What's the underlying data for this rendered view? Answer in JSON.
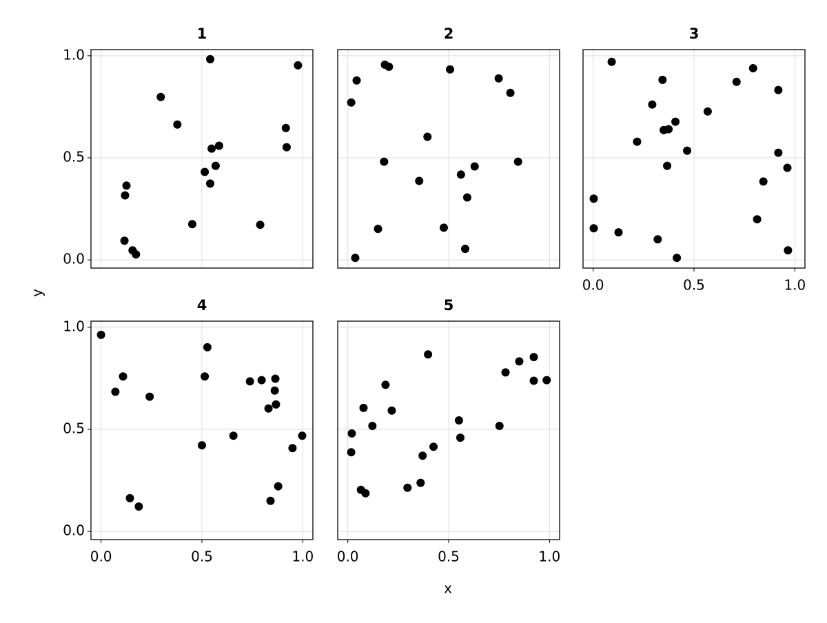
{
  "chart_data": [
    {
      "type": "scatter",
      "title": "1",
      "color": "#000000",
      "grid": true,
      "xtick_labels": false,
      "ytick_labels": true,
      "xlim": [
        -0.05,
        1.05
      ],
      "ylim": [
        -0.04,
        1.03
      ],
      "xticks": [
        {
          "value": 0,
          "label": "0.0"
        },
        0.5,
        {
          "value": 1,
          "label": "1.0"
        }
      ],
      "yticks": [
        {
          "value": 0,
          "label": "0.0"
        },
        0.5,
        {
          "value": 1,
          "label": "1.0"
        }
      ],
      "x": [
        0.296,
        0.541,
        0.976,
        0.378,
        0.916,
        0.92,
        0.585,
        0.548,
        0.514,
        0.568,
        0.541,
        0.126,
        0.119,
        0.116,
        0.156,
        0.173,
        0.452,
        0.789
      ],
      "values": [
        0.798,
        0.983,
        0.953,
        0.663,
        0.646,
        0.552,
        0.559,
        0.545,
        0.431,
        0.461,
        0.374,
        0.364,
        0.316,
        0.094,
        0.047,
        0.027,
        0.175,
        0.172
      ]
    },
    {
      "type": "scatter",
      "title": "2",
      "color": "#000000",
      "grid": true,
      "xtick_labels": false,
      "ytick_labels": false,
      "xlim": [
        -0.05,
        1.05
      ],
      "ylim": [
        -0.04,
        1.03
      ],
      "xticks": [
        {
          "value": 0,
          "label": "0.0"
        },
        0.5,
        {
          "value": 1,
          "label": "1.0"
        }
      ],
      "yticks": [
        {
          "value": 0,
          "label": "0.0"
        },
        0.5,
        {
          "value": 1,
          "label": "1.0"
        }
      ],
      "x": [
        0.044,
        0.017,
        0.184,
        0.204,
        0.507,
        0.748,
        0.806,
        0.395,
        0.18,
        0.844,
        0.629,
        0.561,
        0.354,
        0.592,
        0.15,
        0.476,
        0.582,
        0.037
      ],
      "values": [
        0.879,
        0.771,
        0.956,
        0.946,
        0.933,
        0.889,
        0.818,
        0.603,
        0.481,
        0.481,
        0.458,
        0.418,
        0.387,
        0.306,
        0.152,
        0.158,
        0.054,
        0.01
      ]
    },
    {
      "type": "scatter",
      "title": "3",
      "color": "#000000",
      "grid": true,
      "xtick_labels": true,
      "ytick_labels": false,
      "xlim": [
        -0.05,
        1.05
      ],
      "ylim": [
        -0.04,
        1.03
      ],
      "xticks": [
        {
          "value": 0,
          "label": "0.0"
        },
        0.5,
        {
          "value": 1,
          "label": "1.0"
        }
      ],
      "yticks": [
        {
          "value": 0,
          "label": "0.0"
        },
        0.5,
        {
          "value": 1,
          "label": "1.0"
        }
      ],
      "x": [
        0.092,
        0.793,
        0.344,
        0.711,
        0.918,
        0.293,
        0.568,
        0.408,
        0.35,
        0.374,
        0.218,
        0.466,
        0.918,
        0.367,
        0.963,
        0.844,
        0.003,
        0.813,
        0.003,
        0.126,
        0.32,
        0.966,
        0.415
      ],
      "values": [
        0.97,
        0.939,
        0.882,
        0.872,
        0.832,
        0.761,
        0.727,
        0.677,
        0.636,
        0.64,
        0.579,
        0.535,
        0.525,
        0.461,
        0.451,
        0.384,
        0.3,
        0.199,
        0.155,
        0.135,
        0.101,
        0.047,
        0.01
      ]
    },
    {
      "type": "scatter",
      "title": "4",
      "color": "#000000",
      "grid": true,
      "xtick_labels": true,
      "ytick_labels": true,
      "xlim": [
        -0.05,
        1.05
      ],
      "ylim": [
        -0.04,
        1.03
      ],
      "xticks": [
        {
          "value": 0,
          "label": "0.0"
        },
        0.5,
        {
          "value": 1,
          "label": "1.0"
        }
      ],
      "yticks": [
        {
          "value": 0,
          "label": "0.0"
        },
        0.5,
        {
          "value": 1,
          "label": "1.0"
        }
      ],
      "x": [
        0.0,
        0.527,
        0.109,
        0.514,
        0.071,
        0.241,
        0.738,
        0.796,
        0.864,
        0.861,
        0.867,
        0.83,
        0.656,
        0.997,
        0.5,
        0.949,
        0.878,
        0.143,
        0.84,
        0.187
      ],
      "values": [
        0.963,
        0.902,
        0.759,
        0.759,
        0.684,
        0.66,
        0.735,
        0.741,
        0.748,
        0.69,
        0.622,
        0.602,
        0.469,
        0.469,
        0.422,
        0.408,
        0.221,
        0.163,
        0.15,
        0.122
      ]
    },
    {
      "type": "scatter",
      "title": "5",
      "color": "#000000",
      "grid": true,
      "xtick_labels": true,
      "ytick_labels": false,
      "xlim": [
        -0.05,
        1.05
      ],
      "ylim": [
        -0.04,
        1.03
      ],
      "xticks": [
        {
          "value": 0,
          "label": "0.0"
        },
        0.5,
        {
          "value": 1,
          "label": "1.0"
        }
      ],
      "yticks": [
        {
          "value": 0,
          "label": "0.0"
        },
        0.5,
        {
          "value": 1,
          "label": "1.0"
        }
      ],
      "x": [
        0.398,
        0.187,
        0.782,
        0.85,
        0.922,
        0.922,
        0.986,
        0.078,
        0.218,
        0.122,
        0.551,
        0.752,
        0.02,
        0.558,
        0.425,
        0.371,
        0.017,
        0.065,
        0.088,
        0.296,
        0.361
      ],
      "values": [
        0.867,
        0.718,
        0.779,
        0.833,
        0.854,
        0.738,
        0.741,
        0.605,
        0.592,
        0.517,
        0.544,
        0.517,
        0.48,
        0.459,
        0.415,
        0.371,
        0.388,
        0.204,
        0.187,
        0.214,
        0.238
      ]
    }
  ],
  "xlabel": "x",
  "ylabel": "y"
}
